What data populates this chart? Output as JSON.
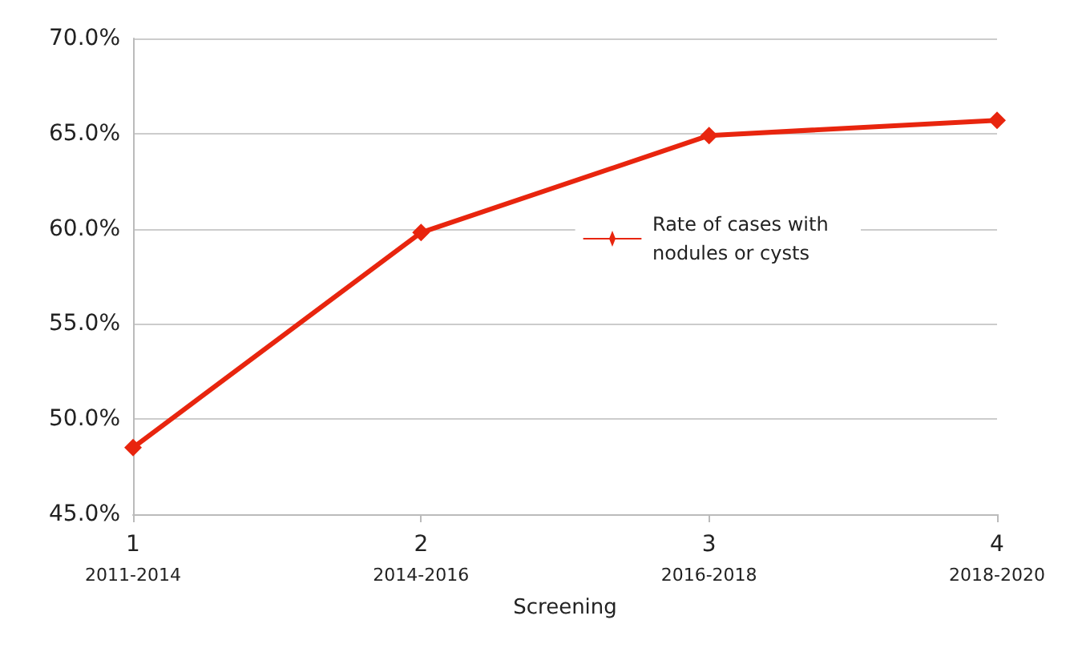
{
  "chart_data": {
    "type": "line",
    "xlabel": "Screening",
    "categories": [
      "1\n2011-2014",
      "2\n2014-2016",
      "3\n2016-2018",
      "4\n2018-2020"
    ],
    "series": [
      {
        "name": "Rate of cases with nodules or cysts",
        "color": "#e8250e",
        "values": [
          48.5,
          59.8,
          64.9,
          65.7
        ]
      }
    ],
    "ylim": [
      45,
      70
    ],
    "yticks": [
      {
        "value": 45,
        "label": "45.0%"
      },
      {
        "value": 50,
        "label": "50.0%"
      },
      {
        "value": 55,
        "label": "55.0%"
      },
      {
        "value": 60,
        "label": "60.0%"
      },
      {
        "value": 65,
        "label": "65.0%"
      },
      {
        "value": 70,
        "label": "70.0%"
      }
    ],
    "grid": "y",
    "legend": "right",
    "marker": "diamond",
    "line_style": "solid"
  }
}
